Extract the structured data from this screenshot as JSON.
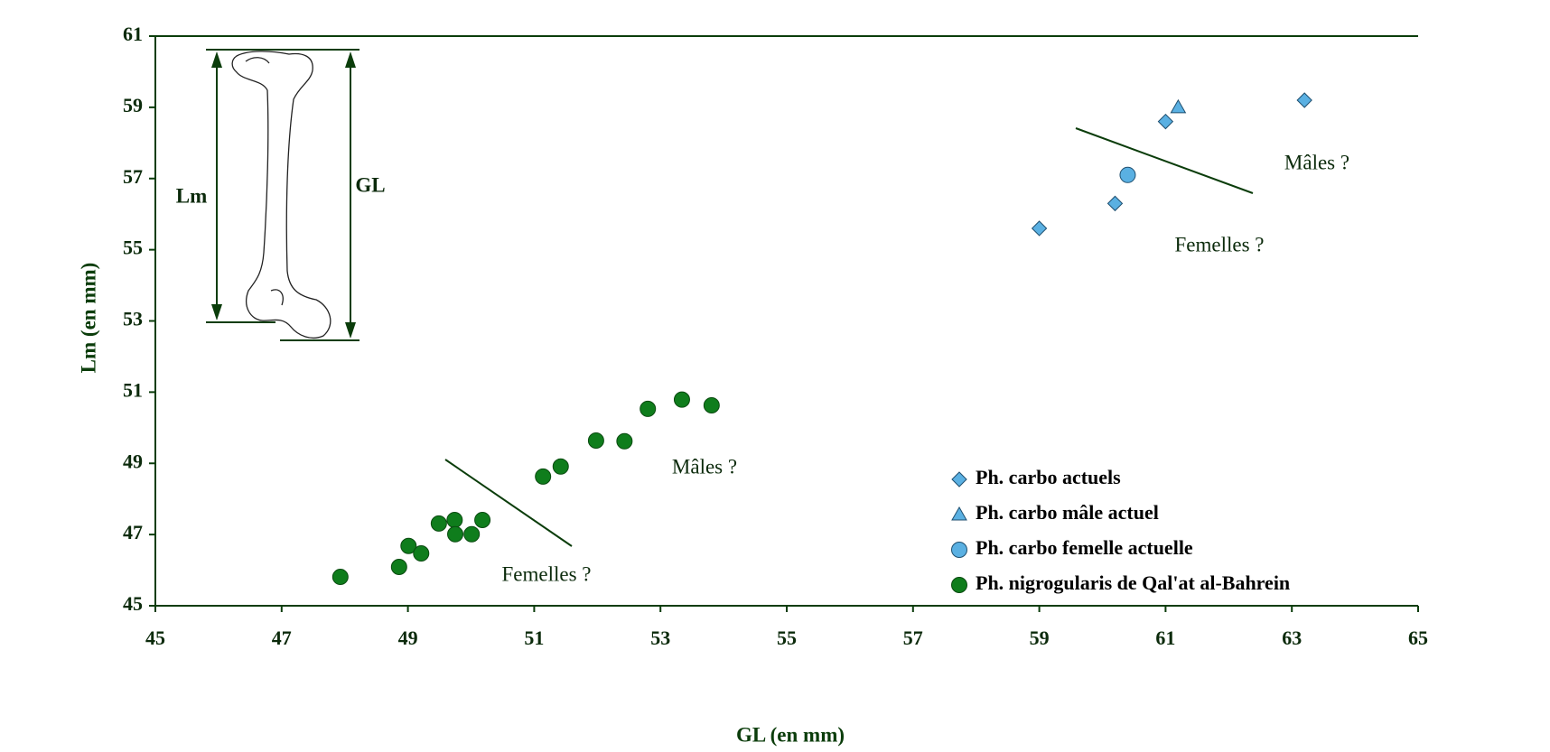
{
  "chart_data": {
    "type": "scatter",
    "x_label": "GL (en mm)",
    "y_label": "Lm (en mm)",
    "xlim": [
      45,
      65
    ],
    "xticks": [
      45,
      47,
      49,
      51,
      53,
      55,
      57,
      59,
      61,
      63,
      65
    ],
    "ylim": [
      45,
      61
    ],
    "yticks": [
      45,
      47,
      49,
      51,
      53,
      55,
      57,
      59,
      61
    ],
    "annotations": [
      "Mâles ?",
      "Femelles ?",
      "Mâles ?",
      "Femelles ?",
      "Lm",
      "GL"
    ],
    "series": [
      {
        "name": "Ph. carbo actuels",
        "color": "#5ab0e2",
        "marker": "diamond",
        "x": [
          59.0,
          60.2,
          61.0,
          63.2
        ],
        "values": [
          55.6,
          56.3,
          58.6,
          59.2
        ]
      },
      {
        "name": "Ph. carbo mâle actuel",
        "color": "#5ab0e2",
        "marker": "triangle",
        "x": [
          61.2
        ],
        "values": [
          59.0
        ]
      },
      {
        "name": "Ph. carbo femelle actuelle",
        "color": "#5ab0e2",
        "marker": "circle",
        "x": [
          60.4
        ],
        "values": [
          57.1
        ]
      },
      {
        "name": "Ph. nigrogularis de Qal'at al-Bahrein",
        "color": "#0f7d1c",
        "marker": "circle",
        "x": [
          47.93,
          48.86,
          49.01,
          49.21,
          49.49,
          49.74,
          49.75,
          50.01,
          50.18,
          51.14,
          51.42,
          51.98,
          52.43,
          52.8,
          53.34,
          53.81
        ],
        "values": [
          45.81,
          46.09,
          46.68,
          46.47,
          47.31,
          47.41,
          47.01,
          47.01,
          47.41,
          48.63,
          48.91,
          49.64,
          49.62,
          50.53,
          50.79,
          50.63
        ]
      }
    ]
  }
}
